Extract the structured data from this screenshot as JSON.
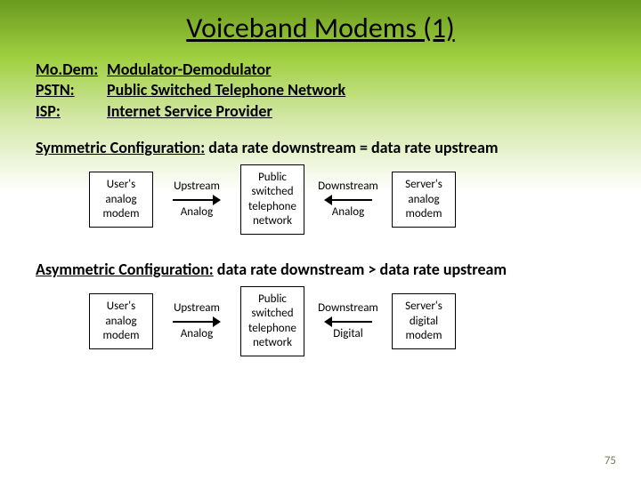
{
  "title": "Voiceband Modems (1)",
  "definitions": [
    {
      "abbr": "Mo.Dem:",
      "full": "Modulator-Demodulator"
    },
    {
      "abbr": "PSTN:",
      "full": "Public Switched Telephone Network"
    },
    {
      "abbr": "ISP:",
      "full": "Internet Service Provider"
    }
  ],
  "symmetric": {
    "label_u": "Symmetric Configuration:",
    "label_rest": "  data rate downstream = data rate upstream",
    "left_box": "User's\nanalog\nmodem",
    "flow1_top": "Upstream",
    "flow1_bottom": "Analog",
    "mid_box": "Public\nswitched\ntelephone\nnetwork",
    "flow2_top": "Downstream",
    "flow2_bottom": "Analog",
    "right_box": "Server's\nanalog\nmodem"
  },
  "asymmetric": {
    "label_u": "Asymmetric Configuration:",
    "label_rest": "  data rate downstream > data rate upstream",
    "left_box": "User's\nanalog\nmodem",
    "flow1_top": "Upstream",
    "flow1_bottom": "Analog",
    "mid_box": "Public\nswitched\ntelephone\nnetwork",
    "flow2_top": "Downstream",
    "flow2_bottom": "Digital",
    "right_box": "Server's\ndigital\nmodem"
  },
  "page_number": "75",
  "colors": {
    "gradient_top": "#6a9a1f",
    "gradient_mid": "#9fcf3f",
    "text": "#000000",
    "pagenum": "#7a7a55"
  }
}
